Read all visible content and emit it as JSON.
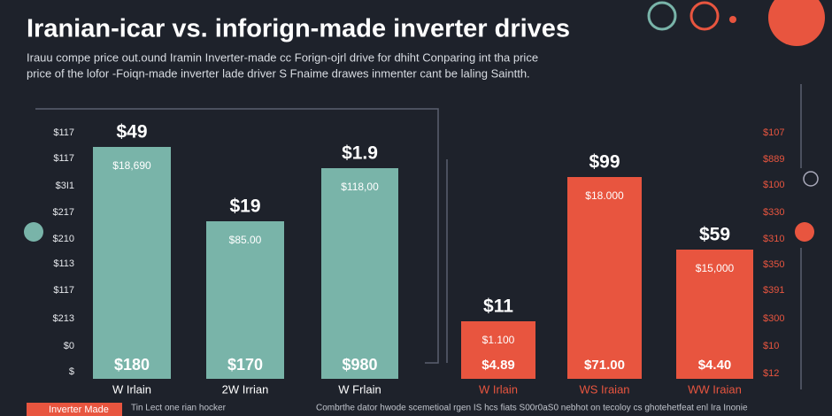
{
  "header": {
    "title": "Iranian-icar vs. inforign-made inverter drives",
    "subtitle": [
      "Irauu compe price out.ound Iramin Inverter-made cc Forign-ojrl drive for dhiht Conparing int tha price",
      "price of the lofor -Foiqn-made inverter lade driver S Fnaime drawes inmenter cant be laling Saintth."
    ]
  },
  "left_axis": [
    "$117",
    "$117",
    "$3I1",
    "$217",
    "$210",
    "$113",
    "$117",
    "$213",
    "$0",
    "$"
  ],
  "right_axis": [
    "$107",
    "$889",
    "$100",
    "$330",
    "$310",
    "$350",
    "$391",
    "$300",
    "$10",
    "$12"
  ],
  "bars": [
    {
      "top": "$49",
      "mid": "$18,690",
      "bottom": "$180",
      "category": "W Irlain"
    },
    {
      "top": "$19",
      "mid": "$85.00",
      "bottom": "$170",
      "category": "2W Irrian"
    },
    {
      "top": "$1.9",
      "mid": "$118,00",
      "bottom": "$980",
      "category": "W Frlain"
    },
    {
      "top": "$11",
      "mid": "$1.100",
      "bottom": "$4.89",
      "category": "W Irlain"
    },
    {
      "top": "$99",
      "mid": "$18.000",
      "bottom": "$71.00",
      "category": "WS Iraian"
    },
    {
      "top": "$59",
      "mid": "$15,000",
      "bottom": "$4.40",
      "category": "WW Iraian"
    }
  ],
  "footer": {
    "badge": "Inverter Made",
    "note": "Tin Lect one rian hocker",
    "text": "Combrthe dator hwode scemetioal rgen IS hcs fiats S00r0aS0 nebhot on tecoloy cs ghotehetfeat enl Ira Inonie"
  }
}
